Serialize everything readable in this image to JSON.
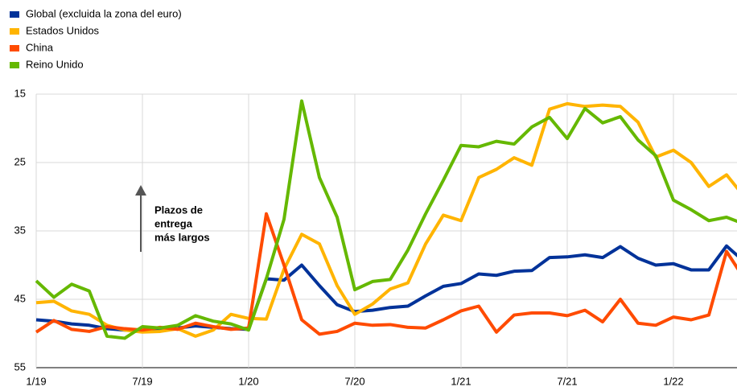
{
  "chart_data": {
    "type": "line",
    "categories": [
      "1/19",
      null,
      null,
      null,
      null,
      null,
      "7/19",
      null,
      null,
      null,
      null,
      null,
      "1/20",
      null,
      null,
      null,
      null,
      null,
      "7/20",
      null,
      null,
      null,
      null,
      null,
      "1/21",
      null,
      null,
      null,
      null,
      null,
      "7/21",
      null,
      null,
      null,
      null,
      null,
      "1/22",
      null,
      null,
      null,
      null
    ],
    "series": [
      {
        "name": "Global (excluida la zona del euro)",
        "color": "#003299",
        "values": [
          48,
          48.2,
          48.6,
          48.8,
          49.3,
          49.5,
          49.6,
          49.4,
          49.2,
          48.9,
          49.1,
          49.3,
          49.4,
          42,
          42.2,
          40,
          43,
          45.8,
          46.8,
          46.6,
          46.2,
          46,
          44.5,
          43.1,
          42.7,
          41.3,
          41.5,
          40.9,
          40.8,
          38.9,
          38.8,
          38.5,
          38.9,
          37.3,
          39,
          40,
          39.8,
          40.7,
          40.7,
          37.2,
          39.5
        ]
      },
      {
        "name": "Estados Unidos",
        "color": "#ffb400",
        "values": [
          45.5,
          45.3,
          46.7,
          47.2,
          48.8,
          49.5,
          49.8,
          49.7,
          49.3,
          50.4,
          49.5,
          47.2,
          47.8,
          47.9,
          40.6,
          35.5,
          36.9,
          43,
          47.2,
          45.7,
          43.5,
          42.6,
          36.9,
          32.7,
          33.5,
          27.2,
          26,
          24.3,
          25.4,
          17.2,
          16.4,
          16.8,
          16.6,
          16.8,
          19.1,
          24.2,
          23.2,
          25,
          28.5,
          26.8,
          30
        ]
      },
      {
        "name": "China",
        "color": "#ff4b00",
        "values": [
          49.8,
          48.1,
          49.4,
          49.7,
          49,
          49.3,
          49.5,
          49.1,
          49.4,
          48.5,
          49,
          49.4,
          49.2,
          32.5,
          40,
          48,
          50.1,
          49.7,
          48.5,
          48.8,
          48.7,
          49.1,
          49.2,
          48,
          46.7,
          46,
          49.8,
          47.3,
          47,
          47,
          47.4,
          46.6,
          48.3,
          45,
          48.5,
          48.8,
          47.6,
          48,
          47.3,
          38,
          42
        ]
      },
      {
        "name": "Reino Unido",
        "color": "#65b800",
        "values": [
          42.3,
          44.7,
          42.8,
          43.8,
          50.4,
          50.7,
          49,
          49.2,
          48.8,
          47.4,
          48.2,
          48.6,
          49.5,
          42,
          33.3,
          16,
          27.2,
          33,
          43.6,
          42.4,
          42.1,
          37.8,
          32.5,
          27.6,
          22.5,
          22.7,
          21.9,
          22.3,
          19.8,
          18.4,
          21.5,
          17.1,
          19.2,
          18.3,
          21.7,
          24,
          30.5,
          31.9,
          33.5,
          33,
          34
        ]
      }
    ],
    "ylim": [
      15,
      55
    ],
    "yticks": [
      15,
      25,
      35,
      45,
      55
    ],
    "y_inverted": true,
    "grid": true,
    "annotation": [
      "Plazos de",
      "entrega",
      "más largos"
    ]
  }
}
